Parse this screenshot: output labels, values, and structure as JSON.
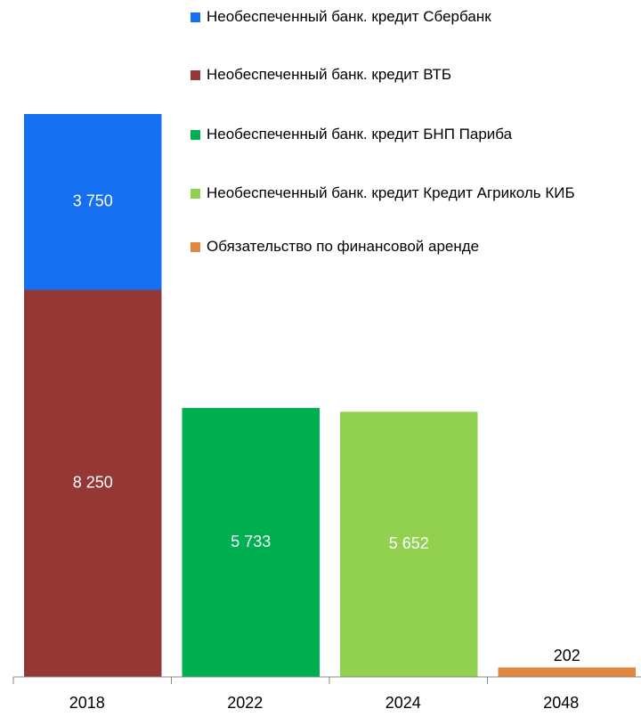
{
  "chart_data": {
    "type": "stacked_bar",
    "categories": [
      "2018",
      "2022",
      "2024",
      "2048"
    ],
    "series": [
      {
        "name": "Необеспеченный банк. кредит ВТБ",
        "color": "#953735",
        "values": [
          8250,
          null,
          null,
          null
        ],
        "value_labels": [
          "8 250",
          null,
          null,
          null
        ]
      },
      {
        "name": "Необеспеченный банк. кредит Сбербанк",
        "color": "#1470f0",
        "values": [
          3750,
          null,
          null,
          null
        ],
        "value_labels": [
          "3 750",
          null,
          null,
          null
        ]
      },
      {
        "name": "Необеспеченный банк. кредит БНП Париба",
        "color": "#00b050",
        "values": [
          null,
          5733,
          null,
          null
        ],
        "value_labels": [
          null,
          "5 733",
          null,
          null
        ]
      },
      {
        "name": "Необеспеченный банк. кредит Кредит Агриколь КИБ",
        "color": "#92d050",
        "values": [
          null,
          null,
          5652,
          null
        ],
        "value_labels": [
          null,
          null,
          "5 652",
          null
        ]
      },
      {
        "name": "Обязательство по финансовой аренде",
        "color": "#e3873f",
        "values": [
          null,
          null,
          null,
          202
        ],
        "value_labels": [
          null,
          null,
          null,
          "202"
        ]
      }
    ],
    "legend_order": [
      1,
      0,
      2,
      3,
      4
    ],
    "ylim": [
      0,
      12000
    ]
  }
}
